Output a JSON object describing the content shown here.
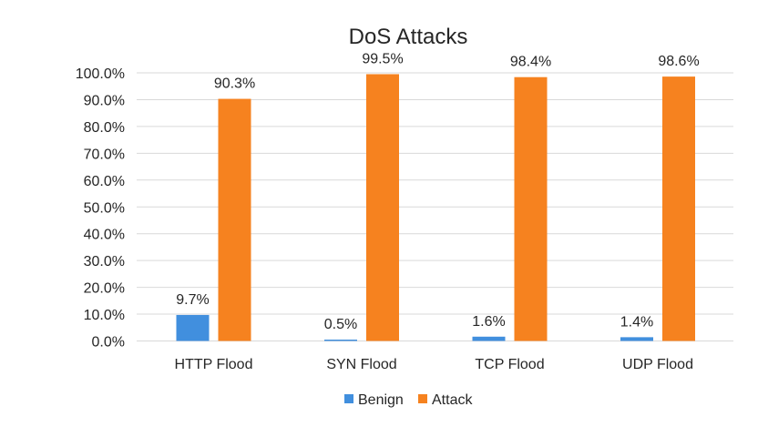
{
  "chart_data": {
    "type": "bar",
    "title": "DoS Attacks",
    "xlabel": "",
    "ylabel": "",
    "categories": [
      "HTTP Flood",
      "SYN Flood",
      "TCP Flood",
      "UDP Flood"
    ],
    "series": [
      {
        "name": "Benign",
        "values": [
          9.7,
          0.5,
          1.6,
          1.4
        ],
        "labels": [
          "9.7%",
          "0.5%",
          "1.6%",
          "1.4%"
        ],
        "color": "#418fde"
      },
      {
        "name": "Attack",
        "values": [
          90.3,
          99.5,
          98.4,
          98.6
        ],
        "labels": [
          "90.3%",
          "99.5%",
          "98.4%",
          "98.6%"
        ],
        "color": "#f6821f"
      }
    ],
    "ylim": [
      0,
      100
    ],
    "yticks": [
      "0.0%",
      "10.0%",
      "20.0%",
      "30.0%",
      "40.0%",
      "50.0%",
      "60.0%",
      "70.0%",
      "80.0%",
      "90.0%",
      "100.0%"
    ],
    "grid": true,
    "legend": "bottom"
  }
}
